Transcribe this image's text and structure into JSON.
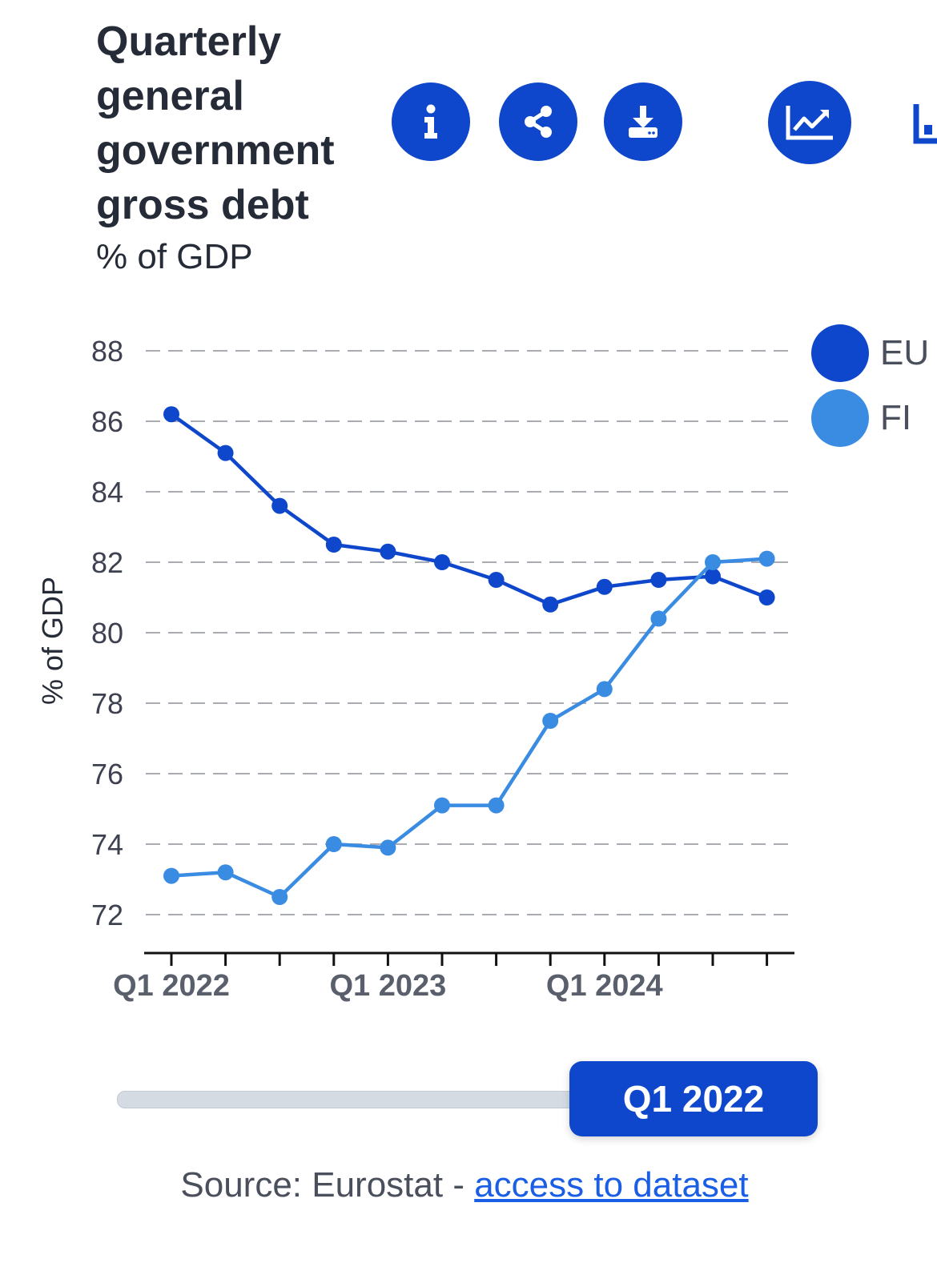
{
  "header": {
    "title": "Quarterly general government gross debt",
    "subtitle": "% of GDP"
  },
  "toolbar": {
    "info_icon": "info-icon",
    "share_icon": "share-icon",
    "download_icon": "download-icon",
    "chart_type_icon": "line-chart-icon"
  },
  "colors": {
    "accent": "#0e47cb",
    "eu": "#0e47cb",
    "fi": "#3a8ce3"
  },
  "legend": {
    "items": [
      {
        "label": "EU",
        "color": "#0e47cb"
      },
      {
        "label": "FI",
        "color": "#3a8ce3"
      }
    ]
  },
  "chart_data": {
    "type": "line",
    "ylabel": "% of GDP",
    "ylim": [
      71,
      88
    ],
    "yticks": [
      "88",
      "86",
      "84",
      "82",
      "80",
      "78",
      "76",
      "74",
      "72"
    ],
    "x": [
      "Q1 2022",
      "Q2 2022",
      "Q3 2022",
      "Q4 2022",
      "Q1 2023",
      "Q2 2023",
      "Q3 2023",
      "Q4 2023",
      "Q1 2024",
      "Q2 2024",
      "Q3 2024",
      "Q4 2024"
    ],
    "xtick_labels": [
      "Q1 2022",
      "Q1 2023",
      "Q1 2024"
    ],
    "grid": true,
    "legend_position": "top-right",
    "series": [
      {
        "name": "EU",
        "color": "#0e47cb",
        "values": [
          86.2,
          85.1,
          83.6,
          82.5,
          82.3,
          82.0,
          81.5,
          80.8,
          81.3,
          81.5,
          81.6,
          81.0
        ]
      },
      {
        "name": "FI",
        "color": "#3a8ce3",
        "values": [
          73.1,
          73.2,
          72.5,
          74.0,
          73.9,
          75.1,
          75.1,
          77.5,
          78.4,
          80.4,
          82.0,
          82.1
        ]
      }
    ]
  },
  "slider": {
    "selected": "Q1 2022"
  },
  "footer": {
    "source_text": "Source: Eurostat - ",
    "link_text": "access to dataset"
  }
}
